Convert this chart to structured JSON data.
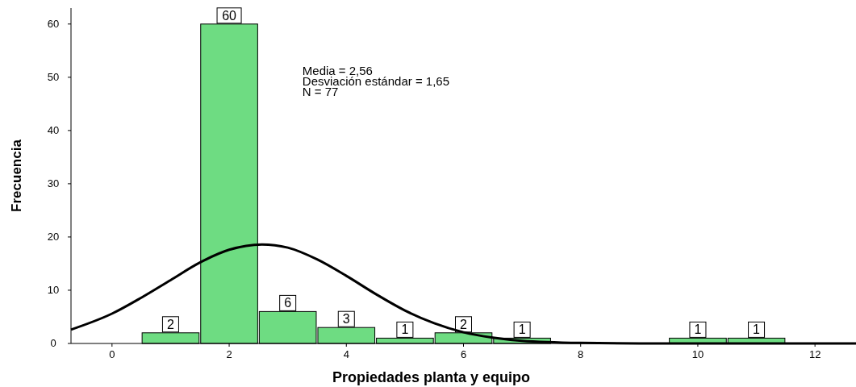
{
  "chart_data": {
    "type": "histogram",
    "xlabel": "Propiedades planta y equipo",
    "ylabel": "Frecuencia",
    "bins": [
      0.5,
      1.5,
      2.5,
      3.5,
      4.5,
      5.5,
      6.5,
      7.5,
      8.5,
      9.5,
      10.5,
      11.5
    ],
    "values": [
      2,
      60,
      6,
      3,
      1,
      2,
      1,
      0,
      0,
      1,
      1
    ],
    "value_labels": [
      "2",
      "60",
      "6",
      "3",
      "1",
      "2",
      "1",
      null,
      null,
      "1",
      "1"
    ],
    "color": "#6edc82",
    "series": [
      {
        "type": "line",
        "color": "#000000",
        "x": [
          -0.7,
          0,
          0.5,
          1,
          1.5,
          2,
          2.56,
          3,
          3.5,
          4,
          4.5,
          5,
          5.5,
          6,
          6.5,
          7,
          8,
          9,
          10,
          12.7
        ],
        "values": [
          2.6,
          5.6,
          8.6,
          11.9,
          15.2,
          17.6,
          18.6,
          18,
          15.8,
          12.7,
          9.3,
          6.2,
          3.8,
          2.1,
          1.1,
          0.5,
          0.1,
          0,
          0,
          0
        ]
      }
    ],
    "annotations": [
      "Media = 2,56",
      "Desviación estándar = 1,65",
      "N = 77"
    ],
    "xlim": [
      -0.7,
      12.7
    ],
    "ylim": [
      0,
      63
    ],
    "xticks": [
      0,
      2,
      4,
      6,
      8,
      10,
      12
    ],
    "yticks": [
      0,
      10,
      20,
      30,
      40,
      50,
      60
    ],
    "grid": false,
    "marker": "none",
    "line_style": "solid"
  }
}
